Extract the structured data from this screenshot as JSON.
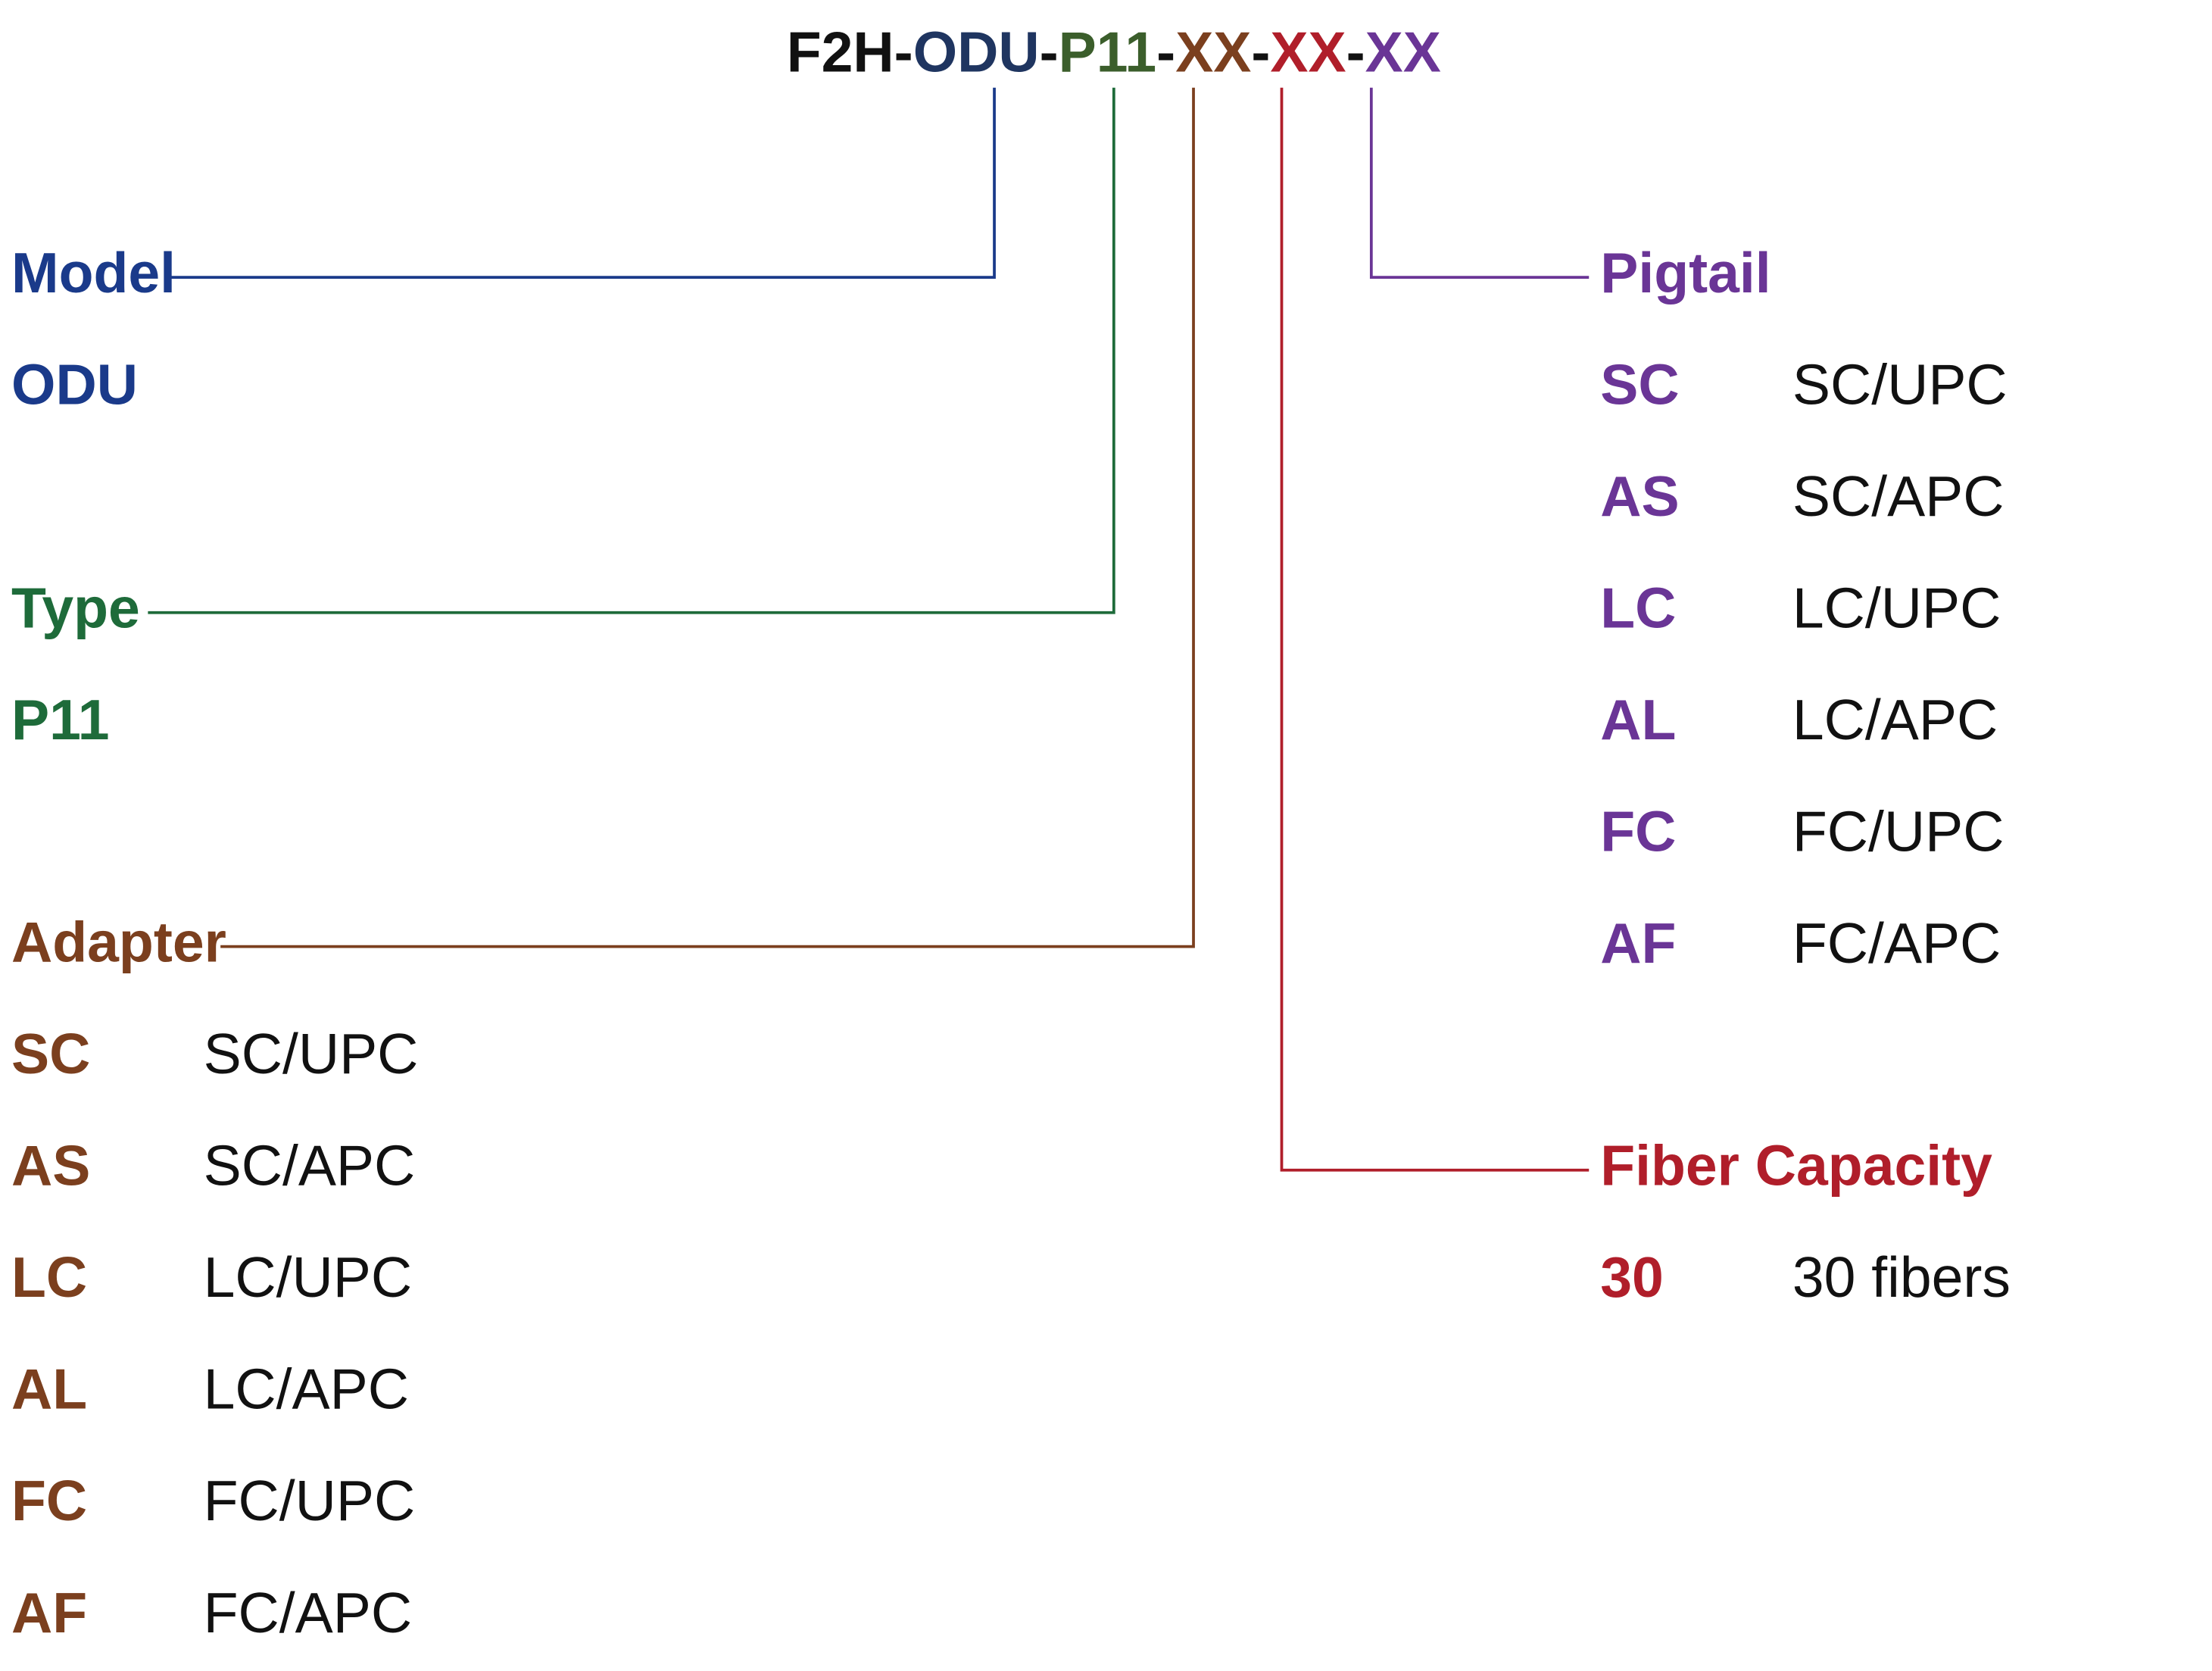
{
  "header": {
    "code": [
      "F2H",
      "-",
      "ODU",
      "-",
      "P11",
      "-",
      "XX",
      "-",
      "XX",
      "-",
      "XX"
    ]
  },
  "sections": [
    {
      "title": "Model",
      "options": [
        {
          "code": "ODU"
        }
      ]
    },
    {
      "title": "Type",
      "options": [
        {
          "code": "P11"
        }
      ]
    },
    {
      "title": "Adapter",
      "options": [
        {
          "code": "SC",
          "desc": "SC/UPC"
        },
        {
          "code": "AS",
          "desc": "SC/APC"
        },
        {
          "code": "LC",
          "desc": "LC/UPC"
        },
        {
          "code": "AL",
          "desc": "LC/APC"
        },
        {
          "code": "FC",
          "desc": "FC/UPC"
        },
        {
          "code": "AF",
          "desc": "FC/APC"
        }
      ]
    },
    {
      "title": "Fiber Capacity",
      "options": [
        {
          "code": "30",
          "desc": "30 fibers"
        }
      ]
    },
    {
      "title": "Pigtail",
      "options": [
        {
          "code": "SC",
          "desc": "SC/UPC"
        },
        {
          "code": "AS",
          "desc": "SC/APC"
        },
        {
          "code": "LC",
          "desc": "LC/UPC"
        },
        {
          "code": "AL",
          "desc": "LC/APC"
        },
        {
          "code": "FC",
          "desc": "FC/UPC"
        },
        {
          "code": "AF",
          "desc": "FC/APC"
        }
      ]
    }
  ]
}
